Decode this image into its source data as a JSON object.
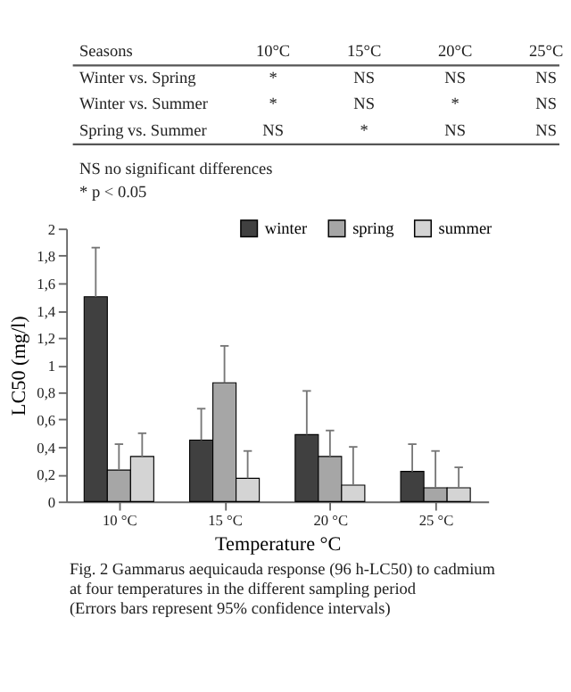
{
  "chart_data": {
    "type": "bar",
    "xlabel": "Temperature °C",
    "ylabel": "LC50 (mg/l)",
    "categories": [
      "10 °C",
      "15 °C",
      "20 °C",
      "25 °C"
    ],
    "series": [
      {
        "name": "winter",
        "color": "#404040",
        "values": [
          1.5,
          0.45,
          0.49,
          0.22
        ],
        "errors": [
          [
            1.5,
            1.86
          ],
          [
            0.45,
            0.68
          ],
          [
            0.49,
            0.81
          ],
          [
            0.22,
            0.42
          ]
        ]
      },
      {
        "name": "spring",
        "color": "#a6a6a6",
        "values": [
          0.23,
          0.87,
          0.33,
          0.1
        ],
        "errors": [
          [
            0.23,
            0.42
          ],
          [
            0.87,
            1.14
          ],
          [
            0.33,
            0.52
          ],
          [
            0.1,
            0.37
          ]
        ]
      },
      {
        "name": "summer",
        "color": "#d4d4d4",
        "values": [
          0.33,
          0.17,
          0.12,
          0.1
        ],
        "errors": [
          [
            0.33,
            0.5
          ],
          [
            0.17,
            0.37
          ],
          [
            0.12,
            0.4
          ],
          [
            0.1,
            0.25
          ]
        ]
      }
    ],
    "ylim": [
      0,
      2
    ],
    "yticks": [
      0,
      {
        "value": 0.2,
        "label": "0,2"
      },
      {
        "value": 0.4,
        "label": "0,4"
      },
      {
        "value": 0.6,
        "label": "0,6"
      },
      {
        "value": 0.8,
        "label": "0,8"
      },
      1,
      {
        "value": 1.2,
        "label": "1,2"
      },
      {
        "value": 1.4,
        "label": "1,4"
      },
      {
        "value": 1.6,
        "label": "1,6"
      },
      {
        "value": 1.8,
        "label": "1,8"
      },
      2
    ],
    "grid": false,
    "legend": "top",
    "annotations": [
      "Seasons 10°C 15°C 20°C 25°C",
      "Winter vs. Spring * NS NS NS",
      "Winter vs. Summer * NS * NS",
      "Spring vs. Summer NS * NS NS",
      "NS no significant differences",
      "* p < 0.05",
      "Fig. 2 Gammarus aequicauda response (96 h-LC50) to cadmium at four temperatures in the different sampling period (Errors bars represent 95% confidence intervals)"
    ]
  }
}
